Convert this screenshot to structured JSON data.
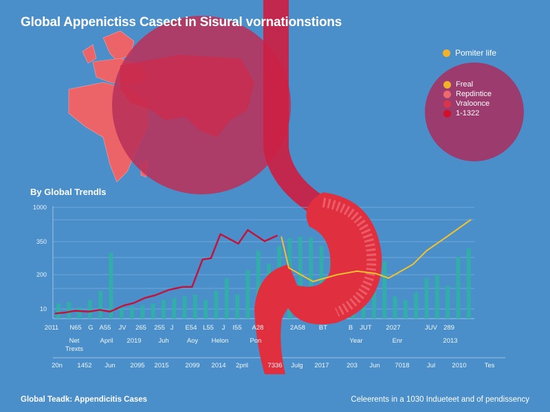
{
  "title": "Global Appenictiss Casect in Sisural vornationstions",
  "legend": {
    "top_item": {
      "label": "Pomiter life",
      "color": "#f2b227"
    },
    "items": [
      {
        "label": "Freal",
        "color": "#f2b227"
      },
      {
        "label": "Repdintice",
        "color": "#ec6a6e"
      },
      {
        "label": "Vraloonce",
        "color": "#d8354a"
      },
      {
        "label": "1-1322",
        "color": "#d3102a"
      }
    ]
  },
  "footer": {
    "left": "Global Teadk: Appendicitis Cases",
    "right": "Celeerents in a 1030 Indueteet and of pendissency"
  },
  "chart_data": {
    "type": "bar",
    "title": "By Global Trendls",
    "grid": true,
    "y_ticks": [
      "1000",
      "350",
      "200",
      "10"
    ],
    "x_labels_row1": [
      "2011",
      "N65",
      "G",
      "A55",
      "JV",
      "265",
      "255",
      "J",
      "E54",
      "L55",
      "J",
      "I55",
      "A28",
      "2A58",
      "BT",
      "B",
      "JUT",
      "2027",
      "JUV",
      "289"
    ],
    "x_labels_row2": [
      "Net Trexts",
      "April",
      "2019",
      "Juh",
      "Aoy",
      "Helon",
      "Pon",
      "Year",
      "Enr",
      "2013"
    ],
    "x_labels_row3": [
      "20n",
      "1452",
      "Jun",
      "2095",
      "2015",
      "2099",
      "2014",
      "2pril",
      "7336",
      "Julg",
      "2017",
      "203",
      "Jun",
      "7018",
      "Jul",
      "2010",
      "Tes"
    ],
    "bar_color": "#2fb3a3",
    "bars": [
      40,
      50,
      20,
      60,
      110,
      300,
      20,
      25,
      30,
      40,
      60,
      70,
      80,
      90,
      60,
      110,
      180,
      90,
      220,
      310,
      250,
      330,
      420,
      440,
      430,
      330,
      300,
      400,
      250,
      330,
      340,
      260,
      80,
      60,
      100,
      180,
      200,
      140,
      280,
      320
    ],
    "series": [
      {
        "color": "#c0143c",
        "x": [
          -0.3,
          0.6,
          1.6,
          2.9,
          3.9,
          4.9,
          6.2,
          7.2,
          8.2,
          9.2,
          10.5,
          11.8,
          12.7,
          13.7,
          14.5,
          15.4,
          17.1,
          18,
          19.6,
          20.8
        ],
        "values": [
          5,
          6,
          8,
          7,
          9,
          7,
          29,
          44,
          71,
          86,
          116,
          132,
          132,
          269,
          275,
          493,
          341,
          571,
          359,
          467
        ]
      },
      {
        "color": "#f2c12e",
        "x": [
          21.2,
          21.9,
          24.2,
          26.5,
          28.4,
          30.1,
          31.4,
          33.7,
          35,
          36.9,
          39.2
        ],
        "values": [
          441,
          231,
          162,
          200,
          216,
          206,
          181,
          247,
          309,
          441,
          766
        ]
      }
    ]
  }
}
